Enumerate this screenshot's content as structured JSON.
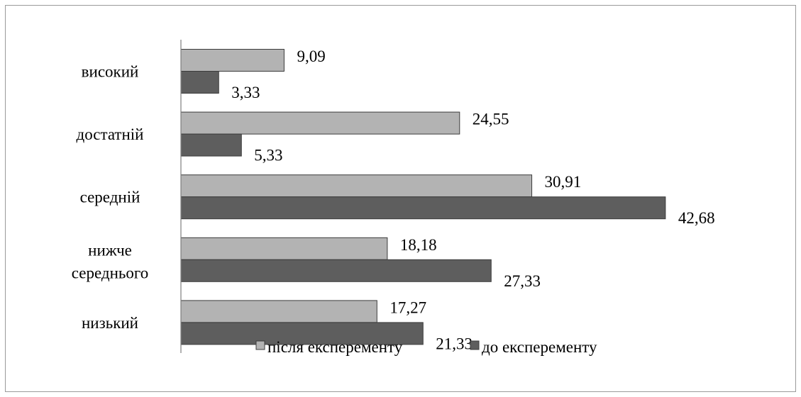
{
  "chart_data": {
    "type": "bar",
    "orientation": "horizontal",
    "categories": [
      "високий",
      "достатній",
      "середній",
      "нижче середнього",
      "низький"
    ],
    "series": [
      {
        "name": "після експеременту",
        "values": [
          9.09,
          24.55,
          30.91,
          18.18,
          17.27
        ],
        "labels": [
          "9,09",
          "24,55",
          "30,91",
          "18,18",
          "17,27"
        ],
        "color": "#b3b3b3"
      },
      {
        "name": "до експеременту",
        "values": [
          3.33,
          5.33,
          42.68,
          27.33,
          21.33
        ],
        "labels": [
          "3,33",
          "5,33",
          "42,68",
          "27,33",
          "21,33"
        ],
        "color": "#5e5e5e"
      }
    ],
    "xlim": [
      0,
      45
    ],
    "grid": false,
    "legend_position": "bottom",
    "title": "",
    "xlabel": "",
    "ylabel": ""
  }
}
